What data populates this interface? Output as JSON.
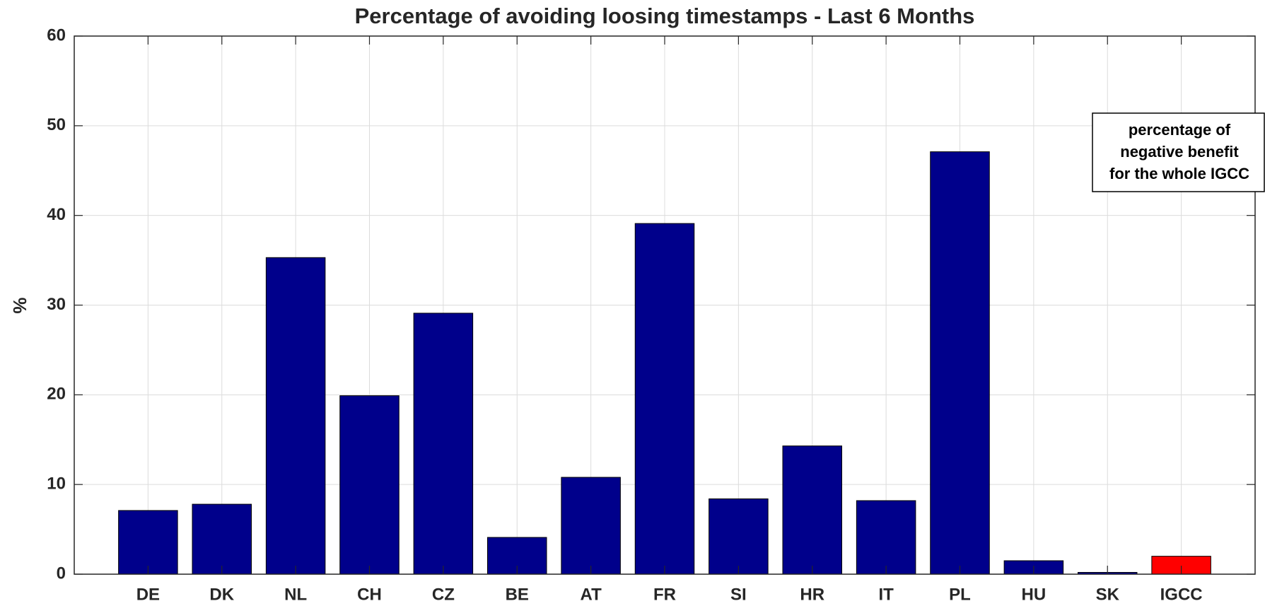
{
  "chart_data": {
    "type": "bar",
    "title": "Percentage of avoiding loosing timestamps - Last 6 Months",
    "ylabel": "%",
    "categories": [
      "DE",
      "DK",
      "NL",
      "CH",
      "CZ",
      "BE",
      "AT",
      "FR",
      "SI",
      "HR",
      "IT",
      "PL",
      "HU",
      "SK",
      "IGCC"
    ],
    "values": [
      7.1,
      7.8,
      35.3,
      19.9,
      29.1,
      4.1,
      10.8,
      39.1,
      8.4,
      14.3,
      8.2,
      47.1,
      1.5,
      0.2,
      2.0
    ],
    "colors": [
      "#00008b",
      "#00008b",
      "#00008b",
      "#00008b",
      "#00008b",
      "#00008b",
      "#00008b",
      "#00008b",
      "#00008b",
      "#00008b",
      "#00008b",
      "#00008b",
      "#00008b",
      "#00008b",
      "#ff0000"
    ],
    "xlim": [
      0,
      16
    ],
    "ylim": [
      0,
      60
    ],
    "yticks": [
      0,
      10,
      20,
      30,
      40,
      50,
      60
    ],
    "grid": true,
    "annotation": [
      "percentage of",
      "negative benefit",
      "for the whole IGCC"
    ]
  }
}
